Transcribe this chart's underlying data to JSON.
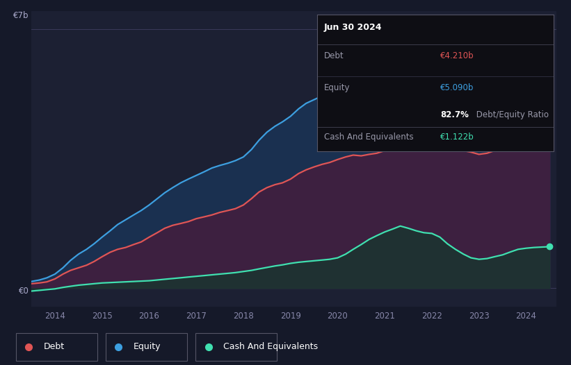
{
  "background_color": "#151929",
  "plot_bg_color": "#1c2033",
  "debt_color": "#e05555",
  "equity_color": "#3d9fe0",
  "cash_color": "#40e0b0",
  "debt_fill_color": "#3d2040",
  "equity_fill_color": "#1a3050",
  "cash_fill_color": "#1a3530",
  "years": [
    2013.5,
    2013.67,
    2013.83,
    2014.0,
    2014.17,
    2014.33,
    2014.5,
    2014.67,
    2014.83,
    2015.0,
    2015.17,
    2015.33,
    2015.5,
    2015.67,
    2015.83,
    2016.0,
    2016.17,
    2016.33,
    2016.5,
    2016.67,
    2016.83,
    2017.0,
    2017.17,
    2017.33,
    2017.5,
    2017.67,
    2017.83,
    2018.0,
    2018.17,
    2018.33,
    2018.5,
    2018.67,
    2018.83,
    2019.0,
    2019.17,
    2019.33,
    2019.5,
    2019.67,
    2019.83,
    2020.0,
    2020.17,
    2020.33,
    2020.5,
    2020.67,
    2020.83,
    2021.0,
    2021.17,
    2021.33,
    2021.5,
    2021.67,
    2021.83,
    2022.0,
    2022.17,
    2022.33,
    2022.5,
    2022.67,
    2022.83,
    2023.0,
    2023.17,
    2023.33,
    2023.5,
    2023.67,
    2023.83,
    2024.0,
    2024.17,
    2024.5
  ],
  "debt": [
    0.12,
    0.14,
    0.17,
    0.25,
    0.38,
    0.48,
    0.55,
    0.62,
    0.72,
    0.85,
    0.97,
    1.05,
    1.1,
    1.18,
    1.25,
    1.38,
    1.5,
    1.62,
    1.7,
    1.75,
    1.8,
    1.88,
    1.93,
    1.98,
    2.05,
    2.1,
    2.15,
    2.25,
    2.42,
    2.6,
    2.72,
    2.8,
    2.85,
    2.95,
    3.1,
    3.2,
    3.28,
    3.35,
    3.4,
    3.48,
    3.55,
    3.6,
    3.58,
    3.62,
    3.65,
    3.72,
    3.85,
    4.05,
    4.0,
    3.98,
    4.0,
    4.05,
    3.95,
    3.85,
    3.78,
    3.72,
    3.68,
    3.62,
    3.65,
    3.72,
    3.82,
    3.9,
    3.98,
    4.05,
    4.12,
    4.21
  ],
  "equity": [
    0.18,
    0.22,
    0.28,
    0.38,
    0.55,
    0.75,
    0.92,
    1.05,
    1.2,
    1.38,
    1.55,
    1.72,
    1.85,
    1.98,
    2.1,
    2.25,
    2.42,
    2.58,
    2.72,
    2.85,
    2.95,
    3.05,
    3.15,
    3.25,
    3.32,
    3.38,
    3.45,
    3.55,
    3.75,
    4.0,
    4.22,
    4.38,
    4.5,
    4.65,
    4.85,
    5.0,
    5.1,
    5.2,
    5.3,
    5.4,
    5.55,
    5.65,
    5.6,
    5.75,
    5.88,
    5.95,
    6.2,
    6.5,
    6.45,
    6.4,
    6.48,
    6.65,
    6.78,
    6.72,
    6.62,
    6.5,
    6.38,
    6.25,
    6.28,
    6.35,
    6.42,
    6.48,
    6.55,
    6.6,
    6.68,
    5.09
  ],
  "cash": [
    -0.08,
    -0.06,
    -0.04,
    -0.02,
    0.02,
    0.05,
    0.08,
    0.1,
    0.12,
    0.14,
    0.15,
    0.16,
    0.17,
    0.18,
    0.19,
    0.2,
    0.22,
    0.24,
    0.26,
    0.28,
    0.3,
    0.32,
    0.34,
    0.36,
    0.38,
    0.4,
    0.42,
    0.45,
    0.48,
    0.52,
    0.56,
    0.6,
    0.63,
    0.67,
    0.7,
    0.72,
    0.74,
    0.76,
    0.78,
    0.82,
    0.92,
    1.05,
    1.18,
    1.32,
    1.42,
    1.52,
    1.6,
    1.68,
    1.62,
    1.55,
    1.5,
    1.48,
    1.38,
    1.2,
    1.05,
    0.92,
    0.82,
    0.78,
    0.8,
    0.85,
    0.9,
    0.98,
    1.05,
    1.08,
    1.1,
    1.122
  ],
  "xticks": [
    2014,
    2015,
    2016,
    2017,
    2018,
    2019,
    2020,
    2021,
    2022,
    2023,
    2024
  ],
  "ylim": [
    -0.5,
    7.5
  ],
  "xlim": [
    2013.5,
    2024.65
  ],
  "info_date": "Jun 30 2024",
  "info_debt_label": "Debt",
  "info_debt_value": "€4.210b",
  "info_equity_label": "Equity",
  "info_equity_value": "€5.090b",
  "info_ratio_value": "82.7%",
  "info_ratio_label": " Debt/Equity Ratio",
  "info_cash_label": "Cash And Equivalents",
  "info_cash_value": "€1.122b",
  "legend_labels": [
    "Debt",
    "Equity",
    "Cash And Equivalents"
  ],
  "ylabel_7b": "€7b",
  "ylabel_0": "€0"
}
